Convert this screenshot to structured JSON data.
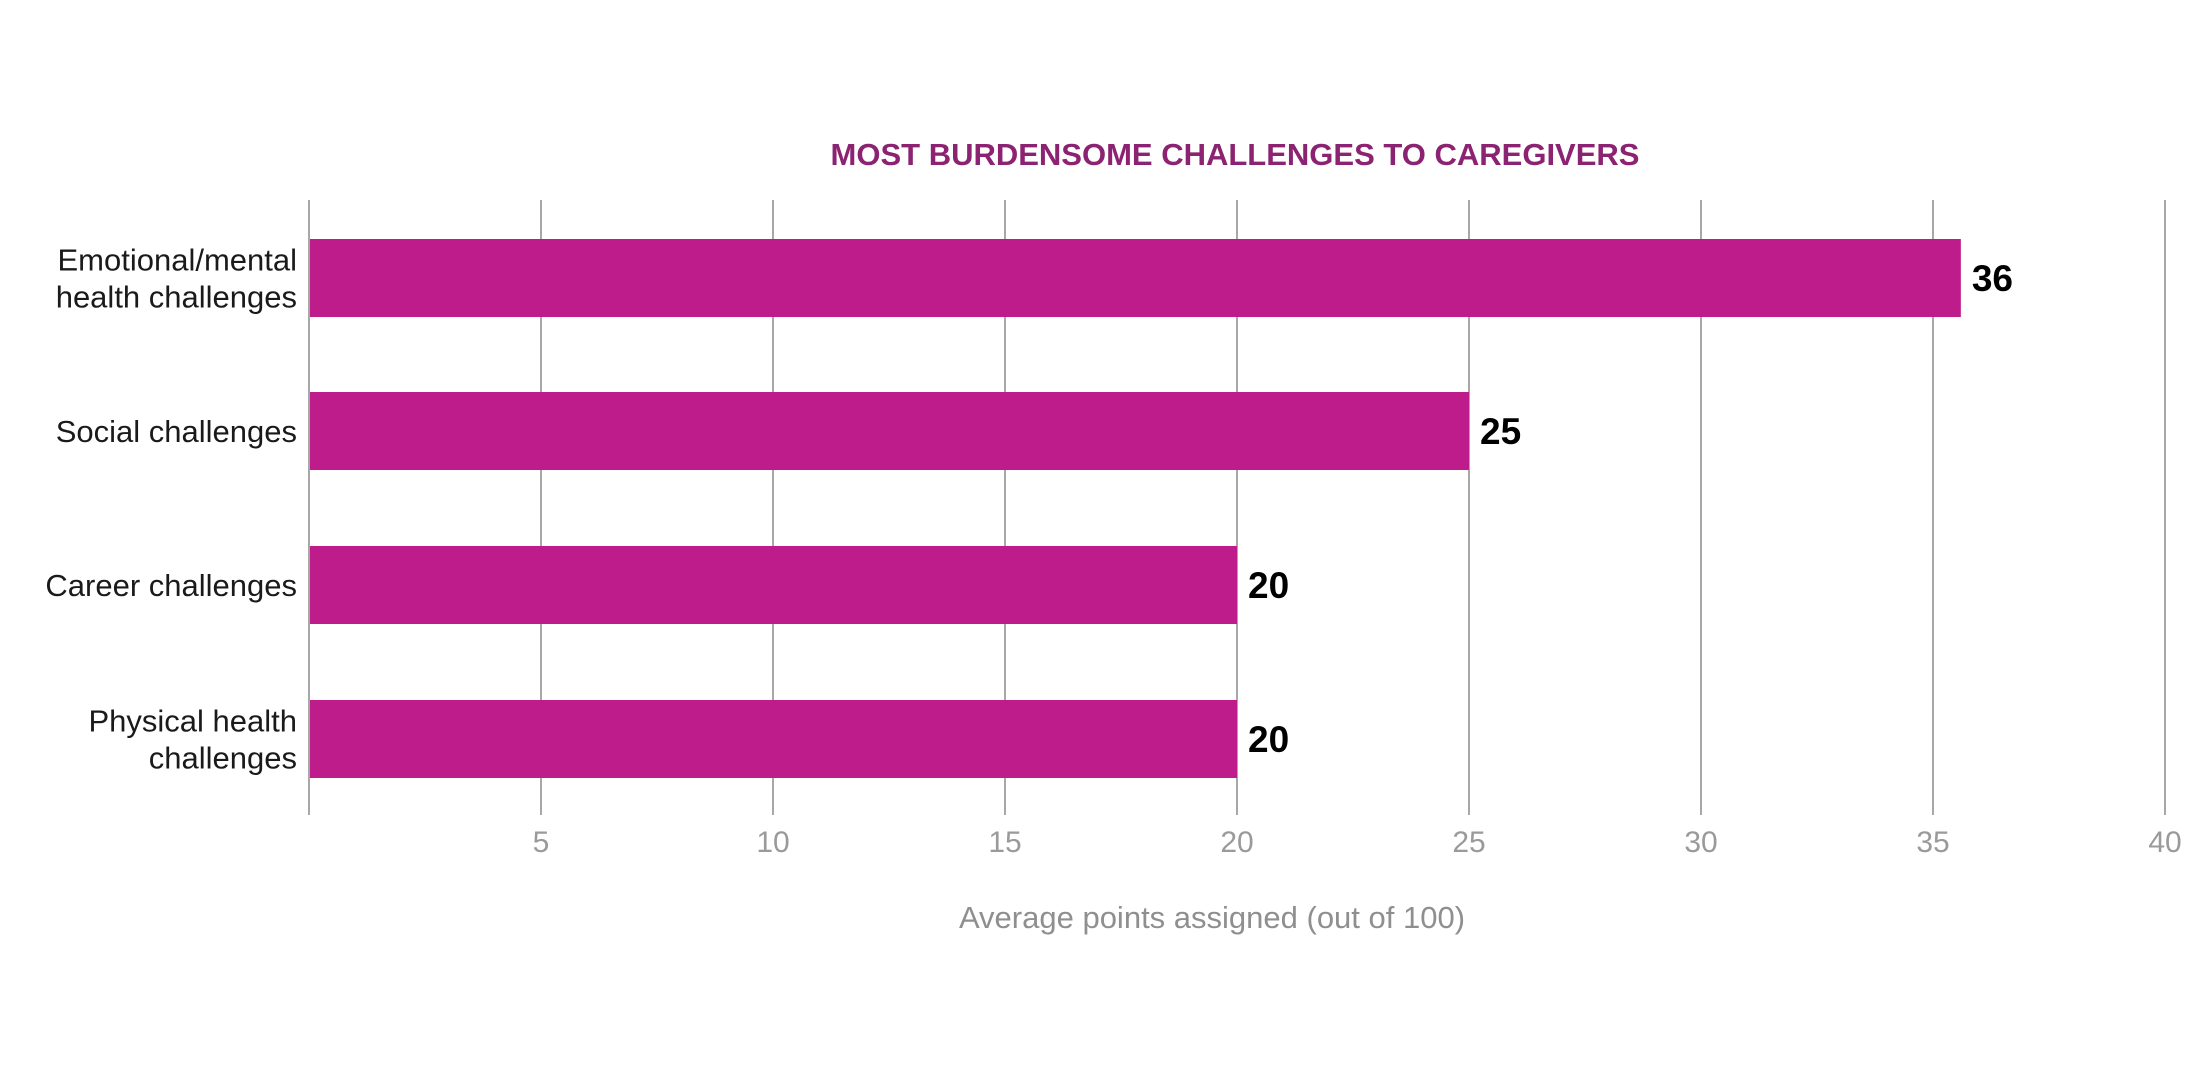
{
  "chart_data": {
    "type": "bar",
    "orientation": "horizontal",
    "title": "MOST BURDENSOME CHALLENGES TO CAREGIVERS",
    "xlabel": "Average points assigned (out of 100)",
    "ylabel": "",
    "categories": [
      [
        "Emotional/mental",
        "health challenges"
      ],
      [
        "Social challenges"
      ],
      [
        "Career challenges"
      ],
      [
        "Physical health",
        "challenges"
      ]
    ],
    "values": [
      35.6,
      25,
      20,
      20
    ],
    "data_labels": [
      "36",
      "25",
      "20",
      "20"
    ],
    "xlim": [
      0,
      40
    ],
    "xticks": [
      5,
      10,
      15,
      20,
      25,
      30,
      35,
      40
    ],
    "grid": true,
    "colors": {
      "bar": "#be1b8b",
      "title": "#8c2272",
      "grid": "#a8a8a8"
    }
  }
}
